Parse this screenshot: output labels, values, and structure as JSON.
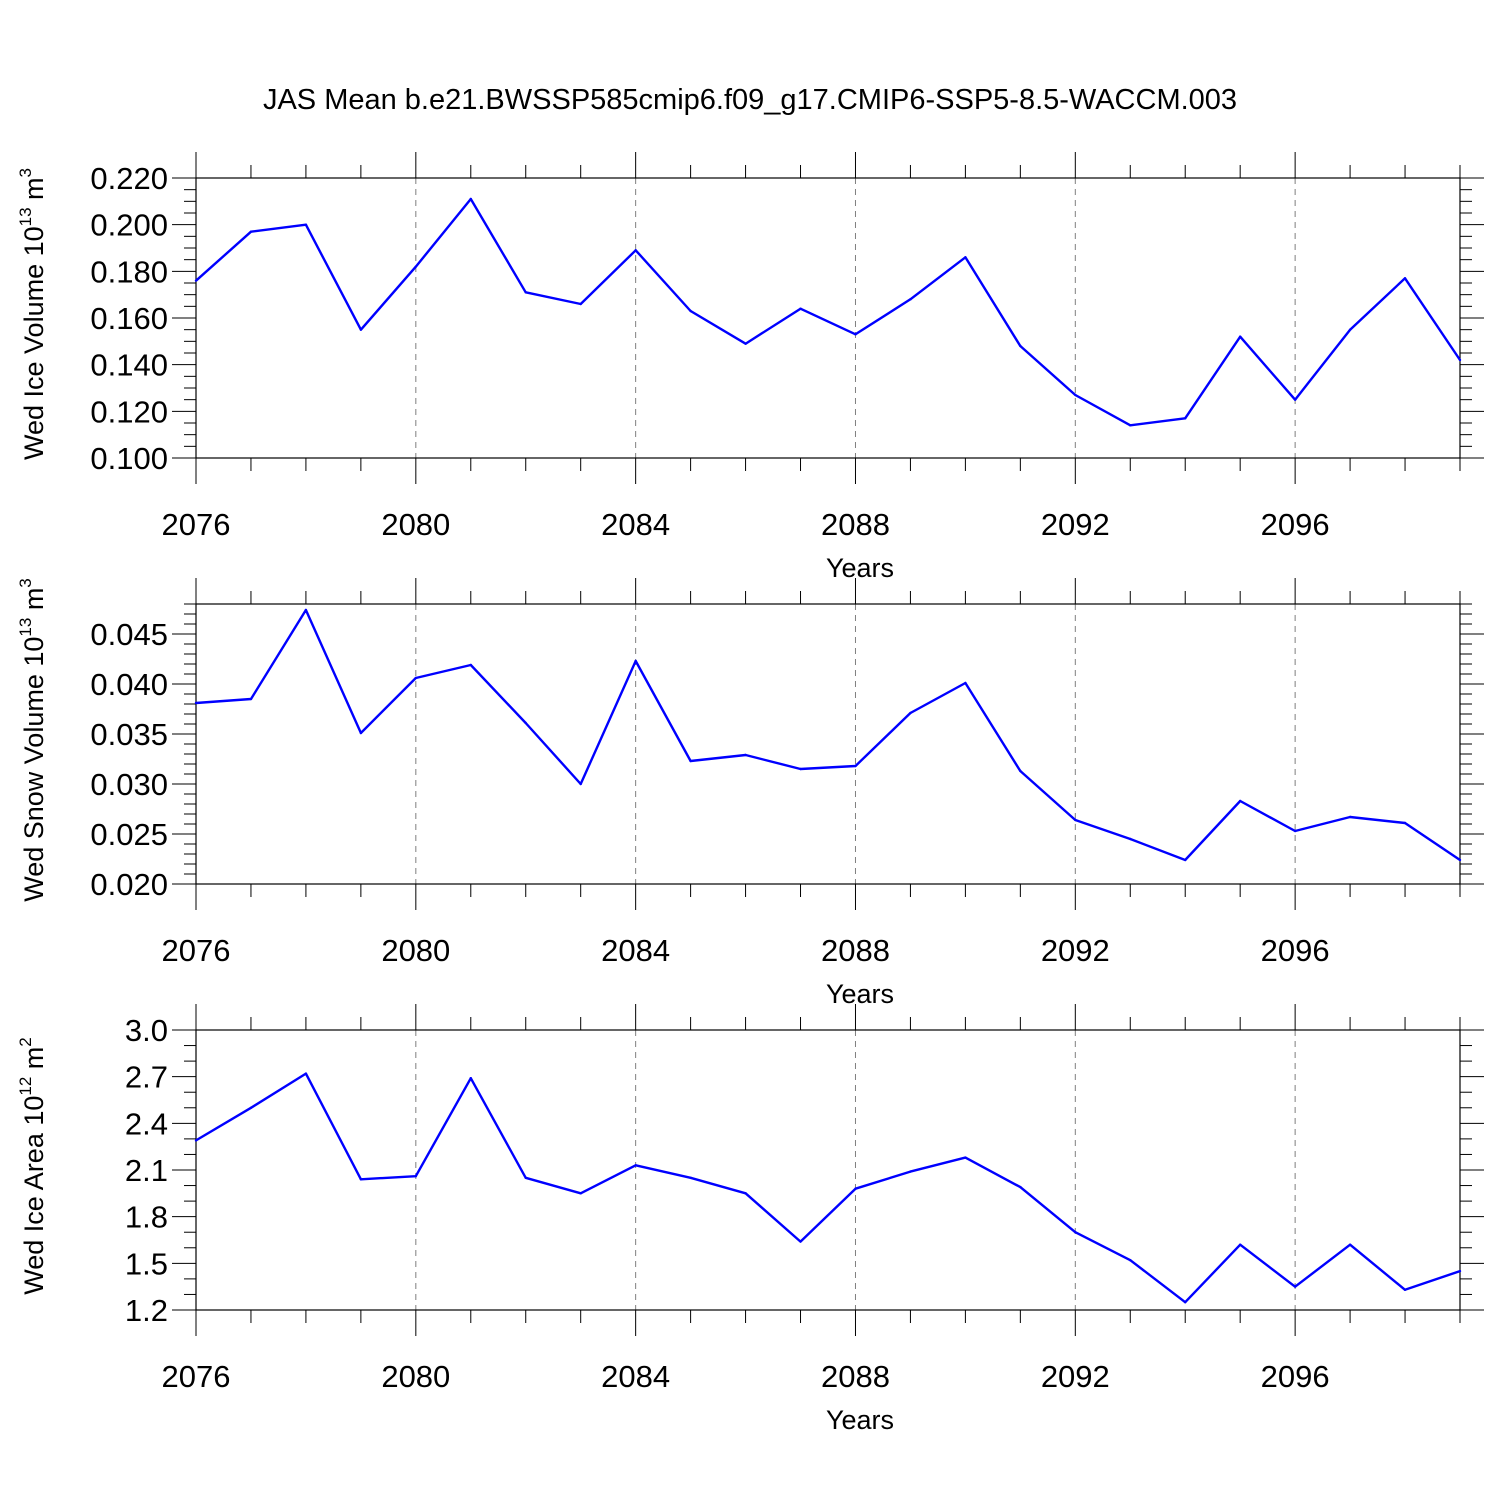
{
  "title": "JAS Mean b.e21.BWSSP585cmip6.f09_g17.CMIP6-SSP5-8.5-WACCM.003",
  "colors": {
    "line": "#0000ff",
    "axis": "#000000",
    "grid": "#7f7f7f"
  },
  "chart_data": [
    {
      "type": "line",
      "ylabel": "Wed Ice Volume 10",
      "ylabel_exp": "13",
      "ylabel_unit": " m",
      "ylabel_unit_exp": "3",
      "xlabel": "Years",
      "xlim": [
        2076,
        2099
      ],
      "ylim": [
        0.1,
        0.22
      ],
      "x_ticks": [
        "2076",
        "2080",
        "2084",
        "2088",
        "2092",
        "2096"
      ],
      "y_ticks": [
        "0.100",
        "0.120",
        "0.140",
        "0.160",
        "0.180",
        "0.200",
        "0.220"
      ],
      "grid": "vertical dashed at major x ticks",
      "series": [
        {
          "x": [
            2076,
            2077,
            2078,
            2079,
            2080,
            2081,
            2082,
            2083,
            2084,
            2085,
            2086,
            2087,
            2088,
            2089,
            2090,
            2091,
            2092,
            2093,
            2094,
            2095,
            2096,
            2097,
            2098,
            2099
          ],
          "values": [
            0.176,
            0.197,
            0.2,
            0.155,
            0.182,
            0.211,
            0.171,
            0.166,
            0.189,
            0.163,
            0.149,
            0.164,
            0.153,
            0.168,
            0.186,
            0.148,
            0.127,
            0.114,
            0.117,
            0.152,
            0.125,
            0.155,
            0.177,
            0.142
          ]
        }
      ]
    },
    {
      "type": "line",
      "ylabel": "Wed Snow Volume 10",
      "ylabel_exp": "13",
      "ylabel_unit": " m",
      "ylabel_unit_exp": "3",
      "xlabel": "Years",
      "xlim": [
        2076,
        2099
      ],
      "ylim": [
        0.02,
        0.048
      ],
      "x_ticks": [
        "2076",
        "2080",
        "2084",
        "2088",
        "2092",
        "2096"
      ],
      "y_ticks": [
        "0.020",
        "0.025",
        "0.030",
        "0.035",
        "0.040",
        "0.045"
      ],
      "grid": "vertical dashed at major x ticks",
      "series": [
        {
          "x": [
            2076,
            2077,
            2078,
            2079,
            2080,
            2081,
            2082,
            2083,
            2084,
            2085,
            2086,
            2087,
            2088,
            2089,
            2090,
            2091,
            2092,
            2093,
            2094,
            2095,
            2096,
            2097,
            2098,
            2099
          ],
          "values": [
            0.0381,
            0.0385,
            0.0474,
            0.0351,
            0.0406,
            0.0419,
            0.0361,
            0.03,
            0.0423,
            0.0323,
            0.0329,
            0.0315,
            0.0318,
            0.0371,
            0.0401,
            0.0313,
            0.0264,
            0.0245,
            0.0224,
            0.0283,
            0.0253,
            0.0267,
            0.0261,
            0.0224
          ]
        }
      ]
    },
    {
      "type": "line",
      "ylabel": "Wed Ice Area 10",
      "ylabel_exp": "12",
      "ylabel_unit": " m",
      "ylabel_unit_exp": "2",
      "xlabel": "Years",
      "xlim": [
        2076,
        2099
      ],
      "ylim": [
        1.2,
        3.0
      ],
      "x_ticks": [
        "2076",
        "2080",
        "2084",
        "2088",
        "2092",
        "2096"
      ],
      "y_ticks": [
        "1.2",
        "1.5",
        "1.8",
        "2.1",
        "2.4",
        "2.7",
        "3.0"
      ],
      "grid": "vertical dashed at major x ticks",
      "series": [
        {
          "x": [
            2076,
            2077,
            2078,
            2079,
            2080,
            2081,
            2082,
            2083,
            2084,
            2085,
            2086,
            2087,
            2088,
            2089,
            2090,
            2091,
            2092,
            2093,
            2094,
            2095,
            2096,
            2097,
            2098,
            2099
          ],
          "values": [
            2.29,
            2.5,
            2.72,
            2.04,
            2.06,
            2.69,
            2.05,
            1.95,
            2.13,
            2.05,
            1.95,
            1.64,
            1.98,
            2.09,
            2.18,
            1.99,
            1.7,
            1.52,
            1.25,
            1.62,
            1.35,
            1.62,
            1.33,
            1.45
          ]
        }
      ]
    }
  ]
}
